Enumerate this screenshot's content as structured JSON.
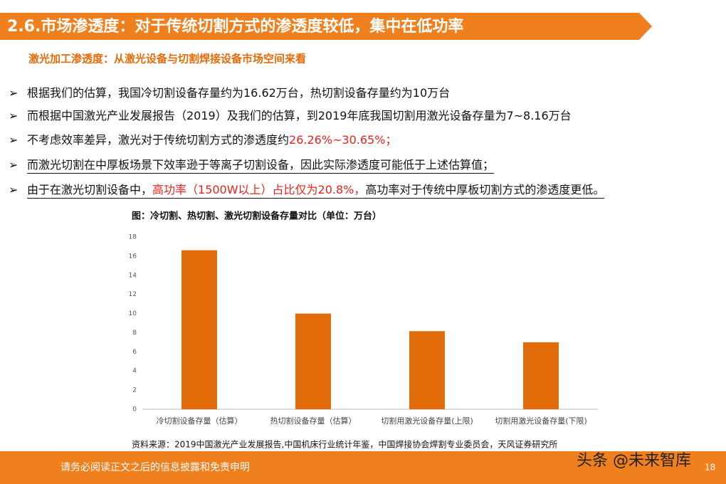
{
  "header": {
    "title": "2.6.市场渗透度：对于传统切割方式的渗透度较低，集中在低功率"
  },
  "subtitle": "激光加工渗透度：从激光设备与切割焊接设备市场空间来看",
  "bullets": [
    {
      "marker": "➢",
      "segments": [
        {
          "text": "根据我们的估算，我国冷切割设备存量约为16.62万台，热切割设备存量约为10万台"
        }
      ]
    },
    {
      "marker": "➢",
      "segments": [
        {
          "text": "而根据中国激光产业发展报告（2019）及我们的估算，到2019年底我国切割用激光设备存量为7~8.16万台"
        }
      ]
    },
    {
      "marker": "➢",
      "segments": [
        {
          "text": "不考虑效率差异，激光对于传统切割方式的渗透度约"
        },
        {
          "text": "26.26%~30.65%；",
          "color": "#e8231e"
        }
      ]
    },
    {
      "marker": "➢",
      "underline": true,
      "segments": [
        {
          "text": "而激光切割在中厚板场景下效率逊于等离子切割设备，因此实际渗透度可能低于上述估算值；"
        }
      ]
    },
    {
      "marker": "➢",
      "underline": true,
      "segments": [
        {
          "text": "由于在激光切割设备中，"
        },
        {
          "text": "高功率（1500W以上）占比仅为20.8%，",
          "color": "#e8231e"
        },
        {
          "text": "高功率对于传统中厚板切割方式的渗透度更低。"
        }
      ]
    }
  ],
  "chart_data": {
    "type": "bar",
    "title": "图：冷切割、热切割、激光切割设备存量对比（单位：万台）",
    "categories": [
      "冷切割设备存量（估算）",
      "热切割设备存量（估算）",
      "切割用激光设备存量(上限)",
      "切割用激光设备存量(下限)"
    ],
    "values": [
      16.62,
      10,
      8.16,
      7
    ],
    "color": "#e36c0a",
    "ylim": [
      0,
      18
    ],
    "yticks": [
      0,
      2,
      4,
      6,
      8,
      10,
      12,
      14,
      16,
      18
    ]
  },
  "source": "资料来源：2019中国激光产业发展报告,中国机床行业统计年鉴，中国焊接协会焊割专业委员会，天风证券研究所",
  "footer": {
    "disclaimer": "请务必阅读正文之后的信息披露和免责申明",
    "page": "18",
    "watermark": "头条 @未来智库"
  }
}
